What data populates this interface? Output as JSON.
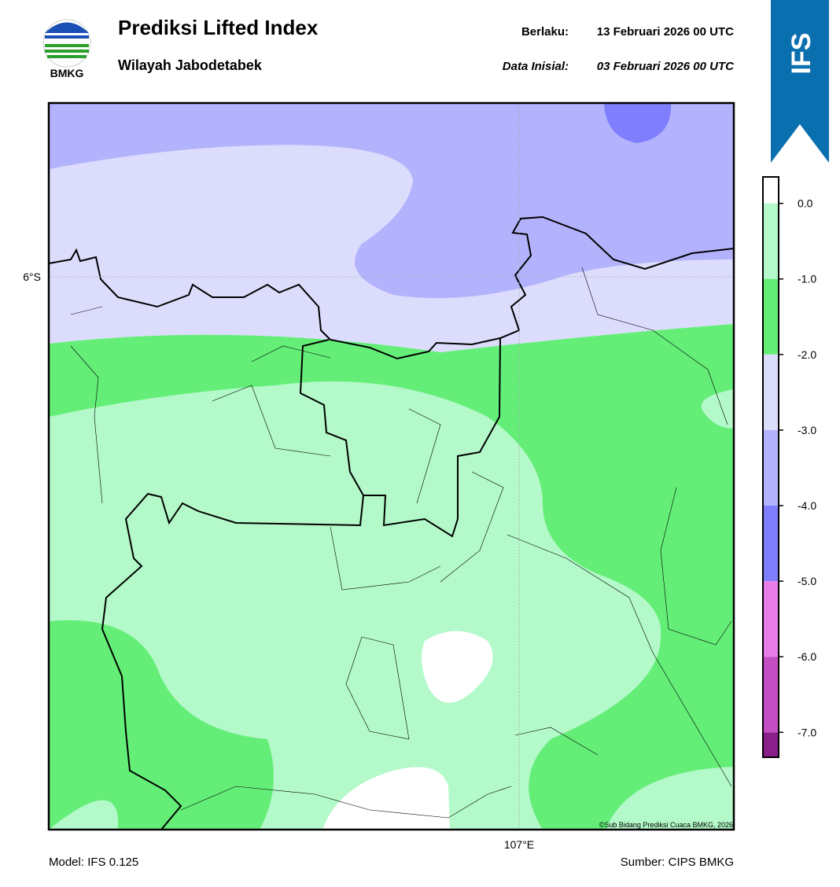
{
  "header": {
    "title": "Prediksi Lifted Index",
    "subtitle": "Wilayah Jabodetabek",
    "valid_label": "Berlaku:",
    "valid_time": "13 Februari 2026 00 UTC",
    "init_label": "Data Inisial:",
    "init_time": "03 Februari 2026 00 UTC",
    "logo_text": "BMKG",
    "badge": "IFS"
  },
  "map": {
    "lat_label": "6°S",
    "lon_label": "107°E",
    "copyright": "©Sub Bidang Prediksi Cuaca BMKG, 2026"
  },
  "colorbar": {
    "lim": [
      -7.33,
      0.35
    ],
    "ticks": [
      {
        "value": 0,
        "label": "0.0"
      },
      {
        "value": -1,
        "label": "-1.0"
      },
      {
        "value": -2,
        "label": "-2.0"
      },
      {
        "value": -3,
        "label": "-3.0"
      },
      {
        "value": -4,
        "label": "-4.0"
      },
      {
        "value": -5,
        "label": "-5.0"
      },
      {
        "value": -6,
        "label": "-6.0"
      },
      {
        "value": -7,
        "label": "-7.0"
      }
    ],
    "colors": [
      "#ffffff",
      "#b3f9c9",
      "#64ee78",
      "#dcdcfd",
      "#b3b3fd",
      "#7f7ffd",
      "#e87de8",
      "#c44fc4",
      "#8a1f8a"
    ]
  },
  "footer": {
    "model": "Model: IFS 0.125",
    "source": "Sumber: CIPS BMKG"
  }
}
